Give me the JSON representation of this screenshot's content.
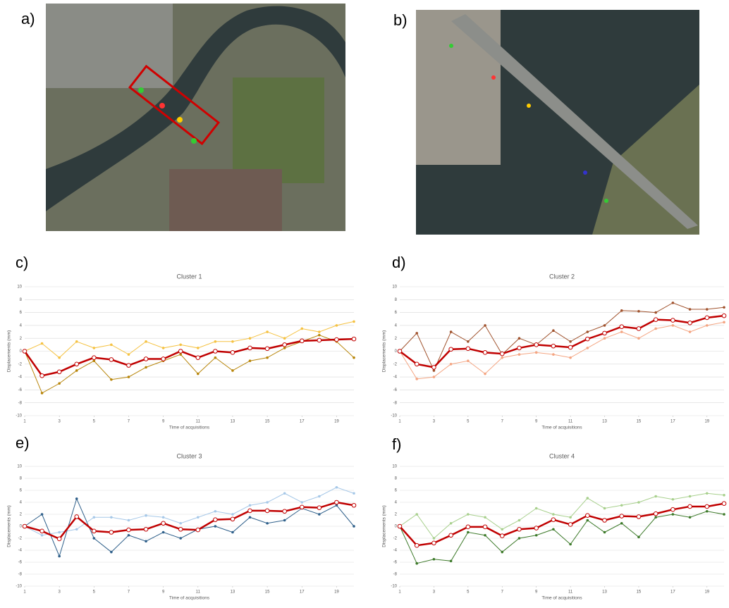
{
  "panels": [
    "a)",
    "b)",
    "c)",
    "d)",
    "e)",
    "f)"
  ],
  "chart_data": [
    {
      "type": "line",
      "title": "Cluster 1",
      "x_label": "Time of acquisitions",
      "y_label": "Displacements (mm)",
      "x": [
        1,
        2,
        3,
        4,
        5,
        6,
        7,
        8,
        9,
        10,
        11,
        12,
        13,
        14,
        15,
        16,
        17,
        18,
        19,
        20
      ],
      "xlim": [
        1,
        20
      ],
      "xticks": [
        1,
        3,
        5,
        7,
        9,
        11,
        13,
        15,
        17,
        19
      ],
      "ylim": [
        -10,
        10
      ],
      "yticks": [
        -10,
        -8,
        -6,
        -4,
        -2,
        0,
        2,
        4,
        6,
        8,
        10
      ],
      "grid": true,
      "series": [
        {
          "color": "#b8860b",
          "values": [
            0,
            -6.5,
            -5,
            -3,
            -1.5,
            -4.4,
            -4,
            -2.5,
            -1.5,
            -0.5,
            -3.5,
            -1,
            -3,
            -1.5,
            -1,
            0.5,
            1.5,
            2.5,
            1.5,
            -1
          ]
        },
        {
          "color": "#f5c242",
          "values": [
            0,
            1.2,
            -1,
            1.5,
            0.5,
            1,
            -0.5,
            1.5,
            0.5,
            1,
            0.5,
            1.5,
            1.5,
            2,
            3,
            2,
            3.5,
            3,
            4,
            4.6
          ]
        },
        {
          "color": "#c00000",
          "values": [
            0,
            -3.8,
            -3.2,
            -2,
            -1,
            -1.3,
            -2.2,
            -1.2,
            -1.2,
            0,
            -1,
            0,
            -0.2,
            0.5,
            0.4,
            1,
            1.6,
            1.7,
            1.8,
            1.9
          ]
        }
      ]
    },
    {
      "type": "line",
      "title": "Cluster 2",
      "x_label": "Time of acquisitions",
      "y_label": "Displacements (mm)",
      "x": [
        1,
        2,
        3,
        4,
        5,
        6,
        7,
        8,
        9,
        10,
        11,
        12,
        13,
        14,
        15,
        16,
        17,
        18,
        19,
        20
      ],
      "xlim": [
        1,
        20
      ],
      "xticks": [
        1,
        3,
        5,
        7,
        9,
        11,
        13,
        15,
        17,
        19
      ],
      "ylim": [
        -10,
        10
      ],
      "yticks": [
        -10,
        -8,
        -6,
        -4,
        -2,
        0,
        2,
        4,
        6,
        8,
        10
      ],
      "grid": true,
      "series": [
        {
          "color": "#a0522d",
          "values": [
            0,
            2.8,
            -3,
            3,
            1.5,
            4,
            -0.5,
            2,
            1,
            3.2,
            1.5,
            3,
            4,
            6.3,
            6.2,
            6,
            7.5,
            6.5,
            6.5,
            6.8
          ]
        },
        {
          "color": "#f4a582",
          "values": [
            0,
            -4.3,
            -4,
            -2,
            -1.5,
            -3.5,
            -1,
            -0.5,
            -0.2,
            -0.5,
            -1,
            0.5,
            2,
            3,
            2,
            3.5,
            4,
            3,
            4,
            4.5
          ]
        },
        {
          "color": "#c00000",
          "values": [
            0,
            -2,
            -2.5,
            0.3,
            0.4,
            -0.2,
            -0.4,
            0.5,
            1,
            0.8,
            0.6,
            1.9,
            2.8,
            3.8,
            3.5,
            4.9,
            4.8,
            4.4,
            5.2,
            5.5
          ]
        }
      ]
    },
    {
      "type": "line",
      "title": "Cluster 3",
      "x_label": "Time of acquisitions",
      "y_label": "Displacements (mm)",
      "x": [
        1,
        2,
        3,
        4,
        5,
        6,
        7,
        8,
        9,
        10,
        11,
        12,
        13,
        14,
        15,
        16,
        17,
        18,
        19,
        20
      ],
      "xlim": [
        1,
        20
      ],
      "xticks": [
        1,
        3,
        5,
        7,
        9,
        11,
        13,
        15,
        17,
        19
      ],
      "ylim": [
        -10,
        10
      ],
      "yticks": [
        -10,
        -8,
        -6,
        -4,
        -2,
        0,
        2,
        4,
        6,
        8,
        10
      ],
      "grid": true,
      "series": [
        {
          "color": "#2e5f8a",
          "values": [
            0,
            2,
            -5,
            4.6,
            -2,
            -4.3,
            -1.5,
            -2.5,
            -1,
            -2,
            -0.5,
            0,
            -1,
            1.5,
            0.5,
            1,
            3,
            2,
            3.5,
            0
          ]
        },
        {
          "color": "#a6c8e8",
          "values": [
            0,
            -1.5,
            -1,
            -0.5,
            1.5,
            1.5,
            1,
            1.8,
            1.5,
            0.5,
            1.5,
            2.5,
            2,
            3.5,
            4,
            5.5,
            4,
            5,
            6.5,
            5.5
          ]
        },
        {
          "color": "#c00000",
          "values": [
            0,
            -0.8,
            -2.1,
            1.6,
            -0.8,
            -1,
            -0.6,
            -0.5,
            0.5,
            -0.5,
            -0.6,
            1.1,
            1.2,
            2.6,
            2.6,
            2.5,
            3.2,
            3.1,
            4,
            3.5
          ]
        }
      ]
    },
    {
      "type": "line",
      "title": "Cluster 4",
      "x_label": "Time of acquisitions",
      "y_label": "Displacements (mm)",
      "x": [
        1,
        2,
        3,
        4,
        5,
        6,
        7,
        8,
        9,
        10,
        11,
        12,
        13,
        14,
        15,
        16,
        17,
        18,
        19,
        20
      ],
      "xlim": [
        1,
        20
      ],
      "xticks": [
        1,
        3,
        5,
        7,
        9,
        11,
        13,
        15,
        17,
        19
      ],
      "ylim": [
        -10,
        10
      ],
      "yticks": [
        -10,
        -8,
        -6,
        -4,
        -2,
        0,
        2,
        4,
        6,
        8,
        10
      ],
      "grid": true,
      "series": [
        {
          "color": "#3d7a2a",
          "values": [
            0,
            -6.2,
            -5.5,
            -5.8,
            -1,
            -1.5,
            -4.3,
            -2,
            -1.5,
            -0.5,
            -3,
            1,
            -1,
            0.5,
            -1.8,
            1.5,
            2,
            1.5,
            2.5,
            2
          ]
        },
        {
          "color": "#a8d08d",
          "values": [
            0,
            2,
            -2,
            0.5,
            2,
            1.5,
            -0.5,
            1,
            3,
            2,
            1.5,
            4.7,
            3,
            3.5,
            4,
            5,
            4.5,
            5,
            5.5,
            5.2
          ]
        },
        {
          "color": "#c00000",
          "values": [
            0,
            -3.2,
            -2.8,
            -1.5,
            -0.1,
            -0.1,
            -1.6,
            -0.5,
            -0.3,
            1.1,
            0.3,
            1.8,
            1,
            1.7,
            1.6,
            2.1,
            2.8,
            3.3,
            3.3,
            3.8
          ]
        }
      ]
    }
  ]
}
